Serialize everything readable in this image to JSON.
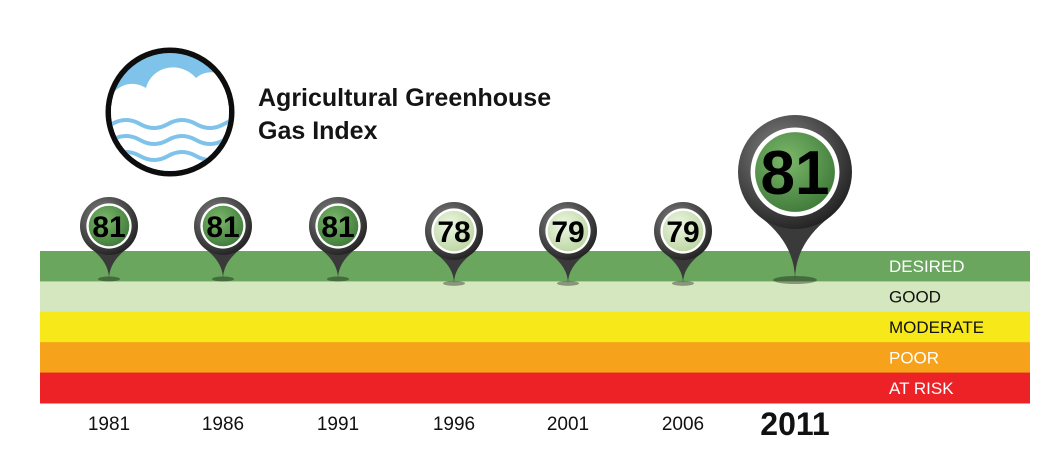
{
  "title_line1": "Agricultural Greenhouse",
  "title_line2": "Gas Index",
  "icon": "cloud-water-icon",
  "colors": {
    "desired": "#6aa65e",
    "good": "#d4e7bf",
    "moderate": "#f7e81a",
    "poor": "#f7a21b",
    "at_risk": "#ec2226",
    "pin_dark": "#3a3a3a",
    "pin_green": "#4f8f4a",
    "pin_light": "#d6e7c2",
    "sky": "#7fc3ea"
  },
  "chart_data": {
    "type": "scatter",
    "title": "Agricultural Greenhouse Gas Index",
    "categories": [
      "1981",
      "1986",
      "1991",
      "1996",
      "2001",
      "2006",
      "2011"
    ],
    "values": [
      81,
      81,
      81,
      78,
      79,
      79,
      81
    ],
    "point_labels": [
      "81",
      "81",
      "81",
      "78",
      "79",
      "79",
      "81"
    ],
    "levels": [
      "DESIRED",
      "GOOD",
      "MODERATE",
      "POOR",
      "AT RISK"
    ],
    "level_colors": [
      "#6aa65e",
      "#d4e7bf",
      "#f7e81a",
      "#f7a21b",
      "#ec2226"
    ],
    "point_levels": [
      "DESIRED",
      "DESIRED",
      "DESIRED",
      "GOOD",
      "GOOD",
      "GOOD",
      "DESIRED"
    ],
    "highlight_category": "2011",
    "grid": false,
    "legend": "right"
  }
}
